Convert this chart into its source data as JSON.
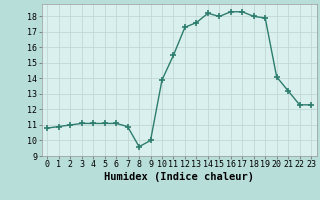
{
  "x": [
    0,
    1,
    2,
    3,
    4,
    5,
    6,
    7,
    8,
    9,
    10,
    11,
    12,
    13,
    14,
    15,
    16,
    17,
    18,
    19,
    20,
    21,
    22,
    23
  ],
  "y": [
    10.8,
    10.9,
    11.0,
    11.1,
    11.1,
    11.1,
    11.1,
    10.9,
    9.6,
    10.0,
    13.9,
    15.5,
    17.3,
    17.6,
    18.2,
    18.0,
    18.3,
    18.3,
    18.0,
    17.9,
    14.1,
    13.2,
    12.3,
    12.3
  ],
  "xlabel": "Humidex (Indice chaleur)",
  "xlim": [
    -0.5,
    23.5
  ],
  "ylim": [
    9,
    18.8
  ],
  "yticks": [
    9,
    10,
    11,
    12,
    13,
    14,
    15,
    16,
    17,
    18
  ],
  "xticks": [
    0,
    1,
    2,
    3,
    4,
    5,
    6,
    7,
    8,
    9,
    10,
    11,
    12,
    13,
    14,
    15,
    16,
    17,
    18,
    19,
    20,
    21,
    22,
    23
  ],
  "line_color": "#2d7d6e",
  "bg_color": "#b8deda",
  "plot_bg": "#daf0ee",
  "grid_color": "#c0d8d4",
  "xlabel_fontsize": 7.5,
  "tick_fontsize": 6,
  "marker": "+",
  "marker_size": 4,
  "line_width": 1.0
}
